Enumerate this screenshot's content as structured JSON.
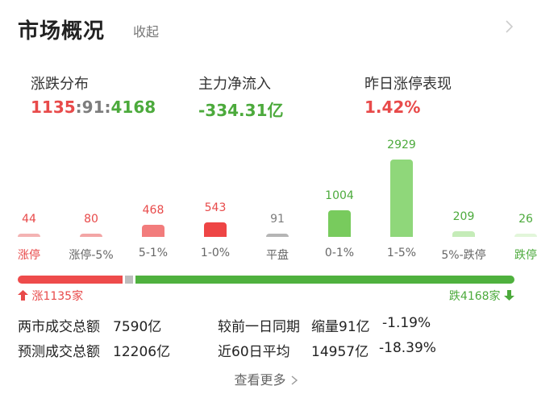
{
  "header": {
    "title": "市场概况",
    "collapse_label": "收起"
  },
  "stats": {
    "dist_label": "涨跌分布",
    "dist_up": "1135",
    "dist_flat": "91",
    "dist_down": "4168",
    "sep": ":",
    "flow_label": "主力净流入",
    "flow_value": "-334.31亿",
    "limit_label": "昨日涨停表现",
    "limit_value": "1.42%"
  },
  "distribution": {
    "buckets": [
      {
        "label": "涨停",
        "count": 44,
        "color": "#f4b3b3"
      },
      {
        "label": "涨停-5%",
        "count": 80,
        "color": "#f3a5a5"
      },
      {
        "label": "5-1%",
        "count": 468,
        "color": "#f27c7c"
      },
      {
        "label": "1-0%",
        "count": 543,
        "color": "#ee4545"
      },
      {
        "label": "平盘",
        "count": 91,
        "color": "#b5b5b5"
      },
      {
        "label": "0-1%",
        "count": 1004,
        "color": "#78cb5d"
      },
      {
        "label": "1-5%",
        "count": 2929,
        "color": "#8fd77a"
      },
      {
        "label": "5%-跌停",
        "count": 209,
        "color": "#c5ecb8"
      },
      {
        "label": "跌停",
        "count": 26,
        "color": "#e2f6da"
      }
    ]
  },
  "progress": {
    "up_count": 1135,
    "flat_count": 91,
    "down_count": 4168,
    "up_text": "涨1135家",
    "down_text": "跌4168家"
  },
  "turnover": {
    "total_label": "两市成交总额",
    "total_value": "7590亿",
    "compare_label": "较前一日同期",
    "compare_change": "缩量91亿",
    "compare_pct": "-1.19%",
    "forecast_label": "预测成交总额",
    "forecast_value": "12206亿",
    "avg60_label": "近60日平均",
    "avg60_value": "14957亿",
    "avg60_pct": "-18.39%"
  },
  "footer": {
    "more_label": "查看更多"
  },
  "colors": {
    "red": "#e84a4a",
    "green": "#4caa3c"
  }
}
